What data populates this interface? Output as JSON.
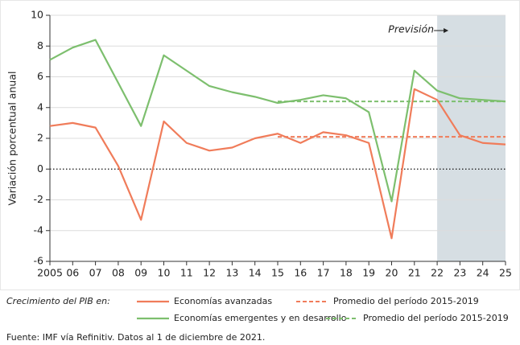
{
  "chart_data": {
    "type": "line",
    "y_label": "Variación porcentual anual",
    "x": [
      2005,
      2006,
      2007,
      2008,
      2009,
      2010,
      2011,
      2012,
      2013,
      2014,
      2015,
      2016,
      2017,
      2018,
      2019,
      2020,
      2021,
      2022,
      2023,
      2024,
      2025
    ],
    "xlim": [
      2005,
      2025
    ],
    "xticks": [
      {
        "value": 2005,
        "label": "2005"
      },
      {
        "value": 2006,
        "label": "06"
      },
      {
        "value": 2007,
        "label": "07"
      },
      {
        "value": 2008,
        "label": "08"
      },
      {
        "value": 2009,
        "label": "09"
      },
      {
        "value": 2010,
        "label": "10"
      },
      {
        "value": 2011,
        "label": "11"
      },
      {
        "value": 2012,
        "label": "12"
      },
      {
        "value": 2013,
        "label": "13"
      },
      {
        "value": 2014,
        "label": "14"
      },
      {
        "value": 2015,
        "label": "15"
      },
      {
        "value": 2016,
        "label": "16"
      },
      {
        "value": 2017,
        "label": "17"
      },
      {
        "value": 2018,
        "label": "18"
      },
      {
        "value": 2019,
        "label": "19"
      },
      {
        "value": 2020,
        "label": "20"
      },
      {
        "value": 2021,
        "label": "21"
      },
      {
        "value": 2022,
        "label": "22"
      },
      {
        "value": 2023,
        "label": "23"
      },
      {
        "value": 2024,
        "label": "24"
      },
      {
        "value": 2025,
        "label": "25"
      }
    ],
    "ylim": [
      -6,
      10
    ],
    "yticks": [
      -6,
      -4,
      -2,
      0,
      2,
      4,
      6,
      8,
      10
    ],
    "grid": true,
    "series": [
      {
        "name": "Economías avanzadas",
        "color": "#f07c5a",
        "values": [
          2.8,
          3.0,
          2.7,
          0.2,
          -3.3,
          3.1,
          1.7,
          1.2,
          1.4,
          2.0,
          2.3,
          1.7,
          2.4,
          2.2,
          1.7,
          -4.5,
          5.2,
          4.5,
          2.2,
          1.7,
          1.6
        ]
      },
      {
        "name": "Economías emergentes y en desarrollo",
        "color": "#7dbf6e",
        "values": [
          7.1,
          7.9,
          8.4,
          5.6,
          2.8,
          7.4,
          6.4,
          5.4,
          5.0,
          4.7,
          4.3,
          4.5,
          4.8,
          4.6,
          3.7,
          -2.1,
          6.4,
          5.1,
          4.6,
          4.5,
          4.4
        ]
      }
    ],
    "averages": [
      {
        "name": "Promedio del período 2015-2019",
        "color": "#f07c5a",
        "value": 2.1,
        "from": 2015,
        "to": 2025
      },
      {
        "name": "Promedio del período 2015-2019",
        "color": "#7dbf6e",
        "value": 4.4,
        "from": 2015,
        "to": 2025
      }
    ],
    "forecast": {
      "label": "Previsión",
      "from": 2022,
      "to": 2025
    },
    "legend_prefix": "Crecimiento del PIB en:",
    "source": "Fuente: IMF vía Refinitiv. Datos al 1 de diciembre de 2021."
  }
}
